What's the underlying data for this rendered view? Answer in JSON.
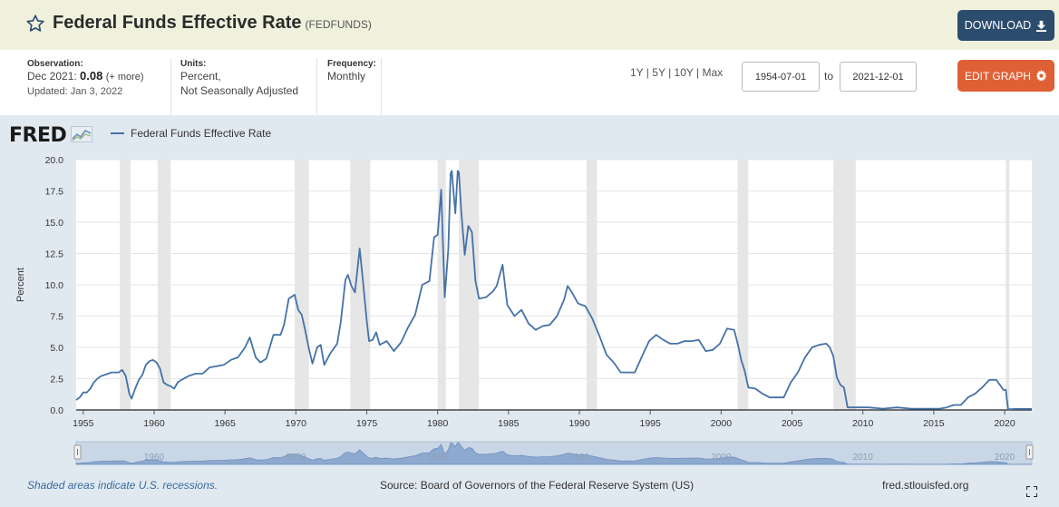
{
  "header": {
    "title": "Federal Funds Effective Rate",
    "series_id": "(FEDFUNDS)",
    "download_label": "DOWNLOAD"
  },
  "info": {
    "observation_label": "Observation:",
    "observation_date": "Dec 2021:",
    "observation_value": "0.08",
    "observation_more": "(+ more)",
    "updated": "Updated: Jan 3, 2022",
    "units_label": "Units:",
    "units_line1": "Percent,",
    "units_line2": "Not Seasonally Adjusted",
    "frequency_label": "Frequency:",
    "frequency_value": "Monthly"
  },
  "controls": {
    "ranges": [
      "1Y",
      "5Y",
      "10Y",
      "Max"
    ],
    "start_date": "1954-07-01",
    "to_label": "to",
    "end_date": "2021-12-01",
    "edit_label": "EDIT GRAPH"
  },
  "legend": {
    "logo_text": "FRED",
    "series_label": "Federal Funds Effective Rate"
  },
  "footer": {
    "recession_note": "Shaded areas indicate U.S. recessions.",
    "source": "Source: Board of Governors of the Federal Reserve System (US)",
    "url": "fred.stlouisfed.org"
  },
  "colors": {
    "line": "#4572a7",
    "recession": "#e6e6e6",
    "download_button": "#2c4c6e",
    "edit_button": "#e06035",
    "header_bg": "#f0f1dd",
    "graph_bg": "#e1e9f0"
  },
  "chart_data": {
    "type": "line",
    "title": "",
    "xlabel": "",
    "ylabel": "Percent",
    "ylim": [
      0,
      20
    ],
    "xlim": [
      "1954-07",
      "2021-12"
    ],
    "y_ticks": [
      "0.0",
      "2.5",
      "5.0",
      "7.5",
      "10.0",
      "12.5",
      "15.0",
      "17.5",
      "20.0"
    ],
    "x_ticks": [
      "1955",
      "1960",
      "1965",
      "1970",
      "1975",
      "1980",
      "1985",
      "1990",
      "1995",
      "2000",
      "2005",
      "2010",
      "2015",
      "2020"
    ],
    "navigator_ticks": [
      "1960",
      "1970",
      "1980",
      "1990",
      "2000",
      "2010",
      "2020"
    ],
    "grid": true,
    "legend_position": "top-left",
    "recessions": [
      [
        "1957-08",
        "1958-04"
      ],
      [
        "1960-04",
        "1961-02"
      ],
      [
        "1969-12",
        "1970-11"
      ],
      [
        "1973-11",
        "1975-03"
      ],
      [
        "1980-01",
        "1980-07"
      ],
      [
        "1981-07",
        "1982-11"
      ],
      [
        "1990-07",
        "1991-03"
      ],
      [
        "2001-03",
        "2001-11"
      ],
      [
        "2007-12",
        "2009-06"
      ],
      [
        "2020-02",
        "2020-04"
      ]
    ],
    "series": [
      {
        "name": "Federal Funds Effective Rate",
        "x": [
          "1954-07",
          "1954-10",
          "1955-01",
          "1955-04",
          "1955-07",
          "1955-10",
          "1956-01",
          "1956-04",
          "1956-07",
          "1956-10",
          "1957-01",
          "1957-04",
          "1957-07",
          "1957-10",
          "1958-01",
          "1958-04",
          "1958-06",
          "1958-09",
          "1958-12",
          "1959-03",
          "1959-06",
          "1959-09",
          "1959-12",
          "1960-03",
          "1960-06",
          "1960-09",
          "1960-12",
          "1961-03",
          "1961-06",
          "1961-09",
          "1961-12",
          "1962-06",
          "1962-12",
          "1963-06",
          "1963-12",
          "1964-06",
          "1964-12",
          "1965-06",
          "1965-12",
          "1966-06",
          "1966-10",
          "1967-03",
          "1967-07",
          "1967-12",
          "1968-06",
          "1968-12",
          "1969-03",
          "1969-07",
          "1969-12",
          "1970-03",
          "1970-06",
          "1970-09",
          "1970-12",
          "1971-03",
          "1971-07",
          "1971-10",
          "1972-01",
          "1972-06",
          "1972-12",
          "1973-03",
          "1973-07",
          "1973-09",
          "1973-12",
          "1974-03",
          "1974-07",
          "1974-10",
          "1975-01",
          "1975-03",
          "1975-06",
          "1975-09",
          "1975-12",
          "1976-06",
          "1976-12",
          "1977-06",
          "1977-12",
          "1978-06",
          "1978-12",
          "1979-06",
          "1979-10",
          "1980-01",
          "1980-04",
          "1980-07",
          "1980-10",
          "1980-12",
          "1981-01",
          "1981-04",
          "1981-06",
          "1981-07",
          "1981-09",
          "1981-12",
          "1982-03",
          "1982-06",
          "1982-09",
          "1982-12",
          "1983-06",
          "1983-12",
          "1984-03",
          "1984-08",
          "1984-12",
          "1985-06",
          "1985-12",
          "1986-06",
          "1986-12",
          "1987-06",
          "1987-12",
          "1988-06",
          "1988-12",
          "1989-03",
          "1989-06",
          "1989-12",
          "1990-06",
          "1990-12",
          "1991-06",
          "1991-12",
          "1992-06",
          "1992-12",
          "1993-06",
          "1993-12",
          "1994-06",
          "1994-12",
          "1995-06",
          "1995-12",
          "1996-06",
          "1996-12",
          "1997-06",
          "1997-12",
          "1998-06",
          "1998-12",
          "1999-06",
          "1999-12",
          "2000-06",
          "2000-12",
          "2001-03",
          "2001-06",
          "2001-09",
          "2001-12",
          "2002-06",
          "2002-12",
          "2003-06",
          "2003-12",
          "2004-06",
          "2004-12",
          "2005-06",
          "2005-12",
          "2006-06",
          "2006-12",
          "2007-06",
          "2007-09",
          "2007-12",
          "2008-03",
          "2008-06",
          "2008-09",
          "2008-12",
          "2009-06",
          "2010-06",
          "2011-06",
          "2012-06",
          "2013-06",
          "2014-06",
          "2015-06",
          "2015-12",
          "2016-06",
          "2016-12",
          "2017-06",
          "2017-12",
          "2018-06",
          "2018-12",
          "2019-06",
          "2019-09",
          "2019-12",
          "2020-02",
          "2020-04",
          "2020-12",
          "2021-06",
          "2021-12"
        ],
        "values": [
          0.8,
          1.0,
          1.4,
          1.4,
          1.7,
          2.2,
          2.5,
          2.7,
          2.8,
          2.9,
          3.0,
          3.0,
          3.0,
          3.2,
          2.7,
          1.3,
          0.9,
          1.7,
          2.4,
          2.8,
          3.6,
          3.9,
          4.0,
          3.8,
          3.3,
          2.2,
          2.0,
          1.9,
          1.7,
          2.2,
          2.4,
          2.7,
          2.9,
          2.9,
          3.4,
          3.5,
          3.6,
          4.0,
          4.2,
          5.0,
          5.8,
          4.2,
          3.8,
          4.1,
          6.0,
          6.0,
          6.8,
          8.9,
          9.2,
          8.0,
          7.6,
          6.3,
          4.9,
          3.7,
          5.0,
          5.2,
          3.6,
          4.5,
          5.3,
          7.0,
          10.4,
          10.8,
          9.9,
          9.4,
          12.9,
          10.1,
          7.1,
          5.5,
          5.6,
          6.2,
          5.2,
          5.5,
          4.7,
          5.4,
          6.6,
          7.6,
          10.0,
          10.3,
          13.8,
          14.0,
          17.6,
          9.0,
          12.8,
          18.9,
          19.1,
          15.7,
          19.1,
          19.0,
          15.9,
          12.4,
          14.7,
          14.2,
          10.3,
          8.9,
          9.0,
          9.5,
          9.9,
          11.6,
          8.4,
          7.5,
          8.0,
          6.9,
          6.4,
          6.7,
          6.8,
          7.5,
          8.8,
          9.9,
          9.5,
          8.5,
          8.3,
          7.3,
          5.9,
          4.4,
          3.8,
          3.0,
          3.0,
          3.0,
          4.3,
          5.5,
          6.0,
          5.6,
          5.3,
          5.3,
          5.5,
          5.5,
          5.6,
          4.7,
          4.8,
          5.3,
          6.5,
          6.4,
          5.3,
          4.0,
          3.1,
          1.8,
          1.7,
          1.3,
          1.0,
          1.0,
          1.0,
          2.2,
          3.0,
          4.2,
          5.0,
          5.2,
          5.3,
          5.0,
          4.3,
          2.6,
          2.0,
          1.8,
          0.2,
          0.2,
          0.2,
          0.1,
          0.2,
          0.1,
          0.1,
          0.1,
          0.2,
          0.4,
          0.4,
          1.0,
          1.3,
          1.8,
          2.4,
          2.4,
          2.0,
          1.6,
          1.6,
          0.05,
          0.09,
          0.08,
          0.08
        ]
      }
    ]
  }
}
